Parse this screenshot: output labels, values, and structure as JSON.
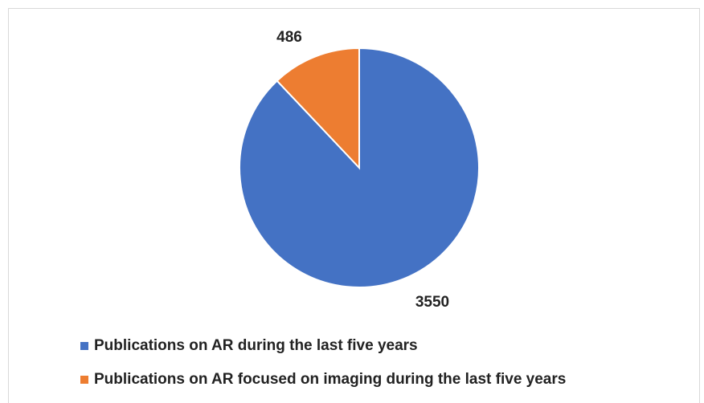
{
  "chart_data": {
    "type": "pie",
    "categories": [
      "Publications on AR during the last five years",
      "Publications on AR focused on imaging during the last five years"
    ],
    "values": [
      3550,
      486
    ],
    "colors": [
      "#4472c4",
      "#ed7d31"
    ],
    "legend": "bottom"
  }
}
